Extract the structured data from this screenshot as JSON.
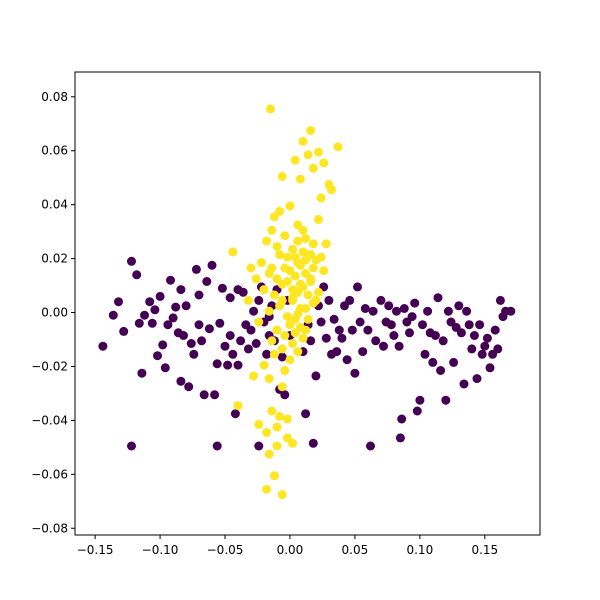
{
  "chart_data": {
    "type": "scatter",
    "title": "",
    "xlabel": "",
    "ylabel": "",
    "xlim": [
      -0.1655,
      0.1925
    ],
    "ylim": [
      -0.0825,
      0.0892
    ],
    "grid": false,
    "legend": "none",
    "x_ticks": [
      -0.15,
      -0.1,
      -0.05,
      0.0,
      0.05,
      0.1,
      0.15
    ],
    "x_tick_labels": [
      "−0.15",
      "−0.10",
      "−0.05",
      "0.00",
      "0.05",
      "0.10",
      "0.15"
    ],
    "y_ticks": [
      -0.08,
      -0.06,
      -0.04,
      -0.02,
      0.0,
      0.02,
      0.04,
      0.06,
      0.08
    ],
    "y_tick_labels": [
      "−0.08",
      "−0.06",
      "−0.04",
      "−0.02",
      "0.00",
      "0.02",
      "0.04",
      "0.06",
      "0.08"
    ],
    "series": [
      {
        "color": "#440154",
        "points": [
          [
            -0.144,
            -0.0125
          ],
          [
            -0.136,
            -0.001
          ],
          [
            -0.132,
            0.004
          ],
          [
            -0.128,
            -0.007
          ],
          [
            -0.122,
            0.019
          ],
          [
            -0.118,
            0.014
          ],
          [
            -0.122,
            -0.0495
          ],
          [
            -0.116,
            -0.004
          ],
          [
            -0.114,
            -0.0225
          ],
          [
            -0.112,
            -0.001
          ],
          [
            -0.108,
            0.004
          ],
          [
            -0.106,
            -0.004
          ],
          [
            -0.104,
            0.001
          ],
          [
            -0.102,
            -0.016
          ],
          [
            -0.1,
            0.006
          ],
          [
            -0.098,
            -0.012
          ],
          [
            -0.096,
            -0.0205
          ],
          [
            -0.094,
            -0.0045
          ],
          [
            -0.092,
            0.012
          ],
          [
            -0.09,
            -0.002
          ],
          [
            -0.088,
            0.002
          ],
          [
            -0.086,
            -0.0075
          ],
          [
            -0.084,
            -0.0255
          ],
          [
            -0.082,
            -0.0085
          ],
          [
            -0.08,
            0.0025
          ],
          [
            -0.078,
            -0.0275
          ],
          [
            -0.076,
            -0.0115
          ],
          [
            -0.074,
            -0.0155
          ],
          [
            -0.072,
            0.016
          ],
          [
            -0.07,
            -0.0045
          ],
          [
            -0.068,
            -0.0105
          ],
          [
            -0.066,
            -0.0305
          ],
          [
            -0.064,
            0.0115
          ],
          [
            -0.062,
            -0.006
          ],
          [
            -0.06,
            0.0175
          ],
          [
            -0.058,
            -0.0305
          ],
          [
            -0.056,
            -0.019
          ],
          [
            -0.056,
            -0.0495
          ],
          [
            -0.054,
            -0.004
          ],
          [
            -0.052,
            0.009
          ],
          [
            -0.05,
            -0.0125
          ],
          [
            -0.048,
            -0.0195
          ],
          [
            -0.046,
            -0.0085
          ],
          [
            -0.044,
            -0.0155
          ],
          [
            -0.042,
            -0.0375
          ],
          [
            -0.04,
            -0.0195
          ],
          [
            -0.038,
            -0.0105
          ],
          [
            -0.036,
            0.0075
          ],
          [
            -0.034,
            -0.0045
          ],
          [
            -0.032,
            -0.0135
          ],
          [
            -0.03,
            -0.0065
          ],
          [
            -0.028,
            0.0005
          ],
          [
            -0.026,
            -0.0115
          ],
          [
            -0.024,
            -0.0495
          ],
          [
            -0.022,
            0.0095
          ],
          [
            -0.02,
            -0.0035
          ],
          [
            -0.018,
            -0.0155
          ],
          [
            -0.016,
            -0.0085
          ],
          [
            -0.014,
            0.0025
          ],
          [
            -0.012,
            -0.0105
          ],
          [
            -0.01,
            0.0085
          ],
          [
            -0.008,
            -0.0285
          ],
          [
            -0.006,
            -0.0165
          ],
          [
            -0.004,
            -0.0305
          ],
          [
            -0.002,
            0.0045
          ],
          [
            0.0,
            -0.0085
          ],
          [
            0.01,
            -0.0145
          ],
          [
            0.012,
            -0.0375
          ],
          [
            0.014,
            -0.0045
          ],
          [
            0.016,
            -0.0105
          ],
          [
            0.018,
            -0.0485
          ],
          [
            0.02,
            -0.0235
          ],
          [
            0.022,
            0.0025
          ],
          [
            0.024,
            -0.0035
          ],
          [
            0.026,
            0.0095
          ],
          [
            0.028,
            -0.0095
          ],
          [
            0.03,
            0.0045
          ],
          [
            0.032,
            -0.0155
          ],
          [
            0.034,
            -0.0025
          ],
          [
            0.036,
            -0.0145
          ],
          [
            0.038,
            -0.0065
          ],
          [
            0.04,
            -0.0095
          ],
          [
            0.042,
            0.0025
          ],
          [
            0.044,
            -0.0175
          ],
          [
            0.046,
            0.0045
          ],
          [
            0.048,
            -0.0065
          ],
          [
            0.05,
            -0.0225
          ],
          [
            0.052,
            0.0095
          ],
          [
            0.054,
            -0.0035
          ],
          [
            0.056,
            -0.0145
          ],
          [
            0.058,
            0.0015
          ],
          [
            0.06,
            -0.0065
          ],
          [
            0.062,
            -0.0495
          ],
          [
            0.064,
            0.0005
          ],
          [
            0.066,
            -0.0105
          ],
          [
            0.07,
            0.0045
          ],
          [
            0.072,
            -0.0125
          ],
          [
            0.074,
            -0.0035
          ],
          [
            0.076,
            0.0025
          ],
          [
            0.078,
            -0.0045
          ],
          [
            0.08,
            -0.0085
          ],
          [
            0.082,
            0.0005
          ],
          [
            0.084,
            -0.0125
          ],
          [
            0.085,
            -0.0465
          ],
          [
            0.086,
            -0.0395
          ],
          [
            0.088,
            0.0015
          ],
          [
            0.09,
            -0.0035
          ],
          [
            0.092,
            -0.0075
          ],
          [
            0.094,
            -0.0015
          ],
          [
            0.096,
            0.0035
          ],
          [
            0.098,
            -0.0365
          ],
          [
            0.1,
            -0.0325
          ],
          [
            0.102,
            -0.0045
          ],
          [
            0.104,
            -0.0155
          ],
          [
            0.106,
            0.0005
          ],
          [
            0.108,
            -0.0075
          ],
          [
            0.11,
            -0.0185
          ],
          [
            0.112,
            -0.0085
          ],
          [
            0.114,
            0.0055
          ],
          [
            0.116,
            -0.0215
          ],
          [
            0.118,
            -0.0105
          ],
          [
            0.12,
            -0.0325
          ],
          [
            0.122,
            0.0005
          ],
          [
            0.124,
            -0.0035
          ],
          [
            0.126,
            -0.0185
          ],
          [
            0.128,
            -0.0055
          ],
          [
            0.13,
            0.0025
          ],
          [
            0.132,
            -0.0075
          ],
          [
            0.134,
            -0.0265
          ],
          [
            0.136,
            0.0005
          ],
          [
            0.138,
            -0.0045
          ],
          [
            0.14,
            -0.0135
          ],
          [
            0.142,
            -0.0085
          ],
          [
            0.144,
            -0.0245
          ],
          [
            0.146,
            -0.0045
          ],
          [
            0.148,
            -0.0155
          ],
          [
            0.15,
            -0.0125
          ],
          [
            0.152,
            -0.0095
          ],
          [
            0.154,
            -0.0205
          ],
          [
            0.156,
            -0.0155
          ],
          [
            0.158,
            -0.0065
          ],
          [
            0.16,
            -0.0135
          ],
          [
            0.162,
            0.0045
          ],
          [
            0.164,
            -0.0015
          ],
          [
            0.166,
            0.0005
          ],
          [
            0.17,
            0.0005
          ],
          [
            -0.084,
            0.0085
          ],
          [
            -0.07,
            0.0065
          ],
          [
            -0.046,
            0.0055
          ],
          [
            -0.04,
            0.0085
          ],
          [
            -0.024,
            0.0045
          ],
          [
            -0.016,
            -0.0015
          ]
        ]
      },
      {
        "color": "#fde725",
        "points": [
          [
            -0.015,
            0.0755
          ],
          [
            0.016,
            0.0675
          ],
          [
            0.01,
            0.0635
          ],
          [
            0.037,
            0.0615
          ],
          [
            0.022,
            0.0595
          ],
          [
            0.014,
            0.0585
          ],
          [
            0.004,
            0.0565
          ],
          [
            0.026,
            0.0555
          ],
          [
            0.018,
            0.0535
          ],
          [
            -0.006,
            0.0505
          ],
          [
            0.008,
            0.0495
          ],
          [
            0.03,
            0.0475
          ],
          [
            0.032,
            0.0455
          ],
          [
            0.024,
            0.0425
          ],
          [
            0.0,
            0.0395
          ],
          [
            -0.008,
            0.0375
          ],
          [
            -0.012,
            0.0355
          ],
          [
            0.022,
            0.0345
          ],
          [
            0.006,
            0.0325
          ],
          [
            -0.014,
            0.0305
          ],
          [
            -0.004,
            0.0285
          ],
          [
            0.012,
            0.0275
          ],
          [
            -0.018,
            0.0265
          ],
          [
            0.028,
            0.0255
          ],
          [
            -0.01,
            0.0245
          ],
          [
            0.002,
            0.0235
          ],
          [
            -0.044,
            0.0225
          ],
          [
            0.014,
            0.0215
          ],
          [
            -0.002,
            0.0205
          ],
          [
            0.02,
            0.0195
          ],
          [
            -0.022,
            0.0185
          ],
          [
            0.008,
            0.0175
          ],
          [
            -0.03,
            0.0165
          ],
          [
            0.026,
            0.0155
          ],
          [
            -0.016,
            0.0145
          ],
          [
            0.004,
            0.0135
          ],
          [
            -0.026,
            0.0125
          ],
          [
            0.016,
            0.0115
          ],
          [
            -0.006,
            0.0105
          ],
          [
            0.01,
            0.0095
          ],
          [
            -0.02,
            0.0085
          ],
          [
            0.022,
            0.0075
          ],
          [
            -0.012,
            0.0065
          ],
          [
            0.002,
            0.0055
          ],
          [
            -0.032,
            0.0045
          ],
          [
            0.018,
            0.0035
          ],
          [
            -0.008,
            0.0025
          ],
          [
            0.012,
            0.0015
          ],
          [
            -0.016,
            0.0005
          ],
          [
            0.006,
            -0.0005
          ],
          [
            -0.002,
            -0.0015
          ],
          [
            0.014,
            -0.0025
          ],
          [
            -0.024,
            -0.0035
          ],
          [
            0.0,
            -0.0045
          ],
          [
            0.008,
            -0.0055
          ],
          [
            -0.01,
            -0.0065
          ],
          [
            0.004,
            -0.0075
          ],
          [
            -0.004,
            -0.0085
          ],
          [
            0.01,
            -0.0095
          ],
          [
            -0.014,
            -0.0105
          ],
          [
            0.002,
            -0.0115
          ],
          [
            -0.006,
            -0.0135
          ],
          [
            0.006,
            -0.0145
          ],
          [
            -0.012,
            -0.0155
          ],
          [
            0.0,
            -0.0175
          ],
          [
            -0.02,
            -0.0195
          ],
          [
            -0.004,
            -0.0215
          ],
          [
            -0.028,
            -0.0235
          ],
          [
            -0.016,
            -0.0245
          ],
          [
            -0.006,
            -0.0275
          ],
          [
            -0.04,
            -0.0345
          ],
          [
            -0.014,
            -0.0365
          ],
          [
            -0.008,
            -0.0385
          ],
          [
            -0.002,
            -0.0395
          ],
          [
            -0.024,
            -0.0415
          ],
          [
            -0.01,
            -0.0425
          ],
          [
            -0.018,
            -0.0445
          ],
          [
            -0.002,
            -0.0465
          ],
          [
            0.002,
            -0.0485
          ],
          [
            -0.01,
            -0.0495
          ],
          [
            -0.016,
            -0.0525
          ],
          [
            -0.018,
            -0.0655
          ],
          [
            -0.012,
            -0.0605
          ],
          [
            -0.006,
            -0.0675
          ],
          [
            -0.008,
            0.0215
          ],
          [
            0.006,
            0.0185
          ],
          [
            0.01,
            0.0225
          ],
          [
            0.018,
            0.0165
          ],
          [
            0.012,
            0.0195
          ],
          [
            0.004,
            0.0205
          ],
          [
            -0.004,
            0.0165
          ],
          [
            0.016,
            0.0125
          ],
          [
            0.008,
            0.0105
          ],
          [
            -0.01,
            0.0125
          ],
          [
            0.014,
            0.0065
          ],
          [
            0.002,
            0.0085
          ],
          [
            0.02,
            0.0045
          ],
          [
            0.008,
            0.0015
          ],
          [
            0.004,
            -0.0025
          ],
          [
            0.012,
            -0.0065
          ],
          [
            0.01,
            0.0305
          ],
          [
            0.018,
            0.0255
          ],
          [
            0.024,
            0.0205
          ],
          [
            0.006,
            0.0265
          ],
          [
            -0.014,
            0.0165
          ],
          [
            0.0,
            0.0155
          ],
          [
            -0.002,
            0.0115
          ],
          [
            0.016,
            0.0215
          ],
          [
            0.012,
            0.0145
          ],
          [
            0.002,
            0.0045
          ],
          [
            0.006,
            0.0075
          ],
          [
            -0.006,
            0.0045
          ]
        ]
      }
    ]
  }
}
